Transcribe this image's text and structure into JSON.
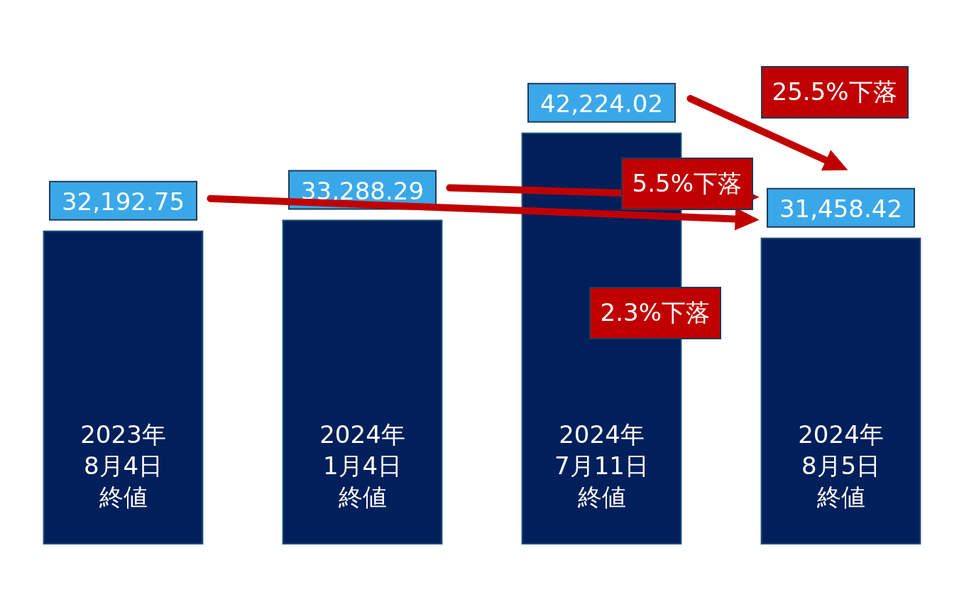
{
  "chart_data": {
    "type": "bar",
    "categories": [
      "2023年8月4日終値",
      "2024年1月4日終値",
      "2024年7月11日終値",
      "2024年8月5日終値"
    ],
    "values": [
      32192.75,
      33288.29,
      42224.02,
      31458.42
    ],
    "value_labels": [
      "32,192.75",
      "33,288.29",
      "42,224.02",
      "31,458.42"
    ],
    "color": "#001f5b",
    "annotations": [
      "25.5%下落",
      "5.5%下落",
      "2.3%下落"
    ]
  }
}
